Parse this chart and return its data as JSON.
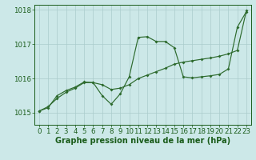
{
  "title": "Graphe pression niveau de la mer (hPa)",
  "x_values": [
    0,
    1,
    2,
    3,
    4,
    5,
    6,
    7,
    8,
    9,
    10,
    11,
    12,
    13,
    14,
    15,
    16,
    17,
    18,
    19,
    20,
    21,
    22,
    23
  ],
  "y_line1": [
    1015.05,
    1015.15,
    1015.5,
    1015.65,
    1015.75,
    1015.9,
    1015.88,
    1015.5,
    1015.25,
    1015.55,
    1016.05,
    1017.2,
    1017.22,
    1017.08,
    1017.08,
    1016.9,
    1016.05,
    1016.02,
    1016.05,
    1016.08,
    1016.12,
    1016.28,
    1017.5,
    1017.95
  ],
  "y_line2": [
    1015.05,
    1015.18,
    1015.42,
    1015.6,
    1015.72,
    1015.88,
    1015.88,
    1015.82,
    1015.68,
    1015.72,
    1015.82,
    1016.0,
    1016.1,
    1016.2,
    1016.3,
    1016.42,
    1016.48,
    1016.52,
    1016.56,
    1016.6,
    1016.65,
    1016.72,
    1016.82,
    1017.98
  ],
  "line_color": "#2d6a2d",
  "bg_color": "#cce8e8",
  "grid_color": "#aacccc",
  "label_color": "#1a5c1a",
  "ylim_min": 1014.65,
  "ylim_max": 1018.15,
  "yticks": [
    1015,
    1016,
    1017,
    1018
  ],
  "xlabel_fontsize": 7.0,
  "tick_fontsize": 6.2,
  "marker_size": 2.0,
  "line_width": 0.85
}
